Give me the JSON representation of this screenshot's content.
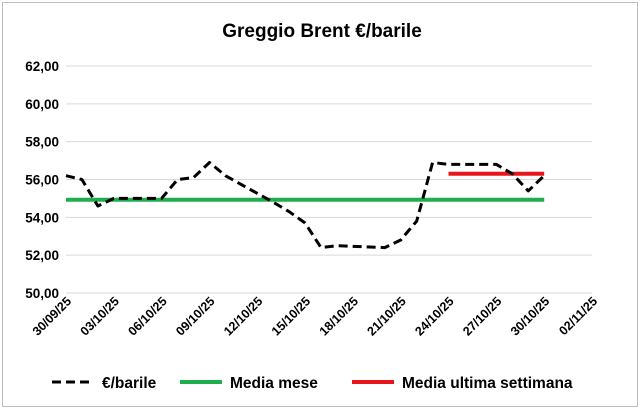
{
  "chart_data": {
    "type": "line",
    "title": "Greggio Brent €/barile",
    "xlabel": "",
    "ylabel": "",
    "ylim": [
      50,
      62
    ],
    "yticks": [
      "50,00",
      "52,00",
      "54,00",
      "56,00",
      "58,00",
      "60,00",
      "62,00"
    ],
    "ytick_values": [
      50,
      52,
      54,
      56,
      58,
      60,
      62
    ],
    "xlim": [
      "2025-09-30",
      "2025-11-02"
    ],
    "xticks": [
      "30/09/25",
      "03/10/25",
      "06/10/25",
      "09/10/25",
      "12/10/25",
      "15/10/25",
      "18/10/25",
      "21/10/25",
      "24/10/25",
      "27/10/25",
      "30/10/25",
      "02/11/25"
    ],
    "grid": "horizontal",
    "legend_position": "bottom",
    "series": [
      {
        "name": "€/barile",
        "style": "dashed",
        "color": "#000000",
        "x": [
          "2025-09-30",
          "2025-10-01",
          "2025-10-02",
          "2025-10-03",
          "2025-10-06",
          "2025-10-07",
          "2025-10-08",
          "2025-10-09",
          "2025-10-10",
          "2025-10-13",
          "2025-10-14",
          "2025-10-15",
          "2025-10-16",
          "2025-10-17",
          "2025-10-20",
          "2025-10-21",
          "2025-10-22",
          "2025-10-23",
          "2025-10-24",
          "2025-10-27",
          "2025-10-28",
          "2025-10-29",
          "2025-10-30"
        ],
        "y": [
          56.2,
          56.0,
          54.6,
          55.0,
          55.0,
          56.0,
          56.1,
          56.9,
          56.2,
          54.8,
          54.3,
          53.7,
          52.4,
          52.5,
          52.4,
          52.8,
          53.8,
          56.9,
          56.8,
          56.8,
          56.3,
          55.4,
          56.2
        ]
      },
      {
        "name": "Media mese",
        "style": "solid",
        "color": "#1fad4e",
        "x": [
          "2025-09-30",
          "2025-10-30"
        ],
        "y": [
          54.93,
          54.93
        ]
      },
      {
        "name": "Media ultima settimana",
        "style": "solid",
        "color": "#e8161b",
        "x": [
          "2025-10-24",
          "2025-10-30"
        ],
        "y": [
          56.3,
          56.3
        ]
      }
    ]
  }
}
